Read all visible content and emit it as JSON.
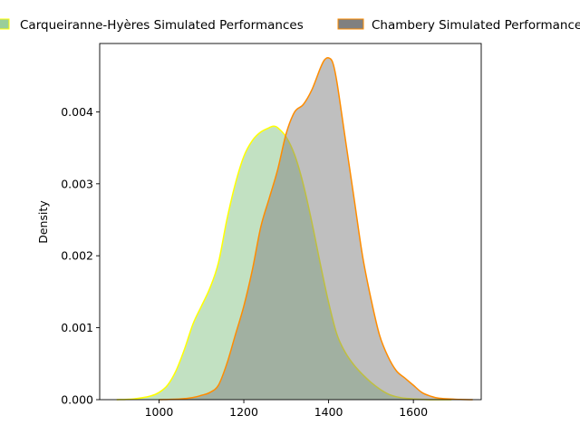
{
  "chart_data": {
    "type": "area",
    "xlabel": "",
    "ylabel": "Density",
    "xlim": [
      860,
      1760
    ],
    "ylim": [
      0,
      0.00495
    ],
    "xticks": [
      1000,
      1200,
      1400,
      1600
    ],
    "yticks": [
      0.0,
      0.001,
      0.002,
      0.003,
      0.004
    ],
    "ytick_labels": [
      "0.000",
      "0.001",
      "0.002",
      "0.003",
      "0.004"
    ],
    "grid": false,
    "legend_position": "top",
    "series": [
      {
        "name": "Carqueiranne-Hyères Simulated Performances",
        "fill_color": "#8fc98f",
        "fill_opacity": 0.55,
        "line_color": "#ffff00",
        "legend_swatch": "#8fc98f",
        "legend_edge": "#ffff00",
        "x": [
          900,
          940,
          980,
          1000,
          1020,
          1040,
          1060,
          1080,
          1100,
          1120,
          1140,
          1160,
          1180,
          1200,
          1220,
          1240,
          1260,
          1270,
          1280,
          1300,
          1320,
          1340,
          1360,
          1380,
          1400,
          1420,
          1440,
          1460,
          1480,
          1500,
          1520,
          1540,
          1560,
          1580,
          1600,
          1640,
          1690
        ],
        "y": [
          0,
          1e-05,
          5e-05,
          0.0001,
          0.0002,
          0.0004,
          0.0007,
          0.00105,
          0.0013,
          0.00155,
          0.0019,
          0.0025,
          0.003,
          0.00338,
          0.0036,
          0.00372,
          0.00378,
          0.0038,
          0.00378,
          0.00365,
          0.0034,
          0.003,
          0.00248,
          0.0019,
          0.00135,
          0.0009,
          0.00065,
          0.00048,
          0.00035,
          0.00024,
          0.00015,
          8e-05,
          4e-05,
          2e-05,
          1e-05,
          0,
          0
        ]
      },
      {
        "name": "Chambery Simulated Performances",
        "fill_color": "#808080",
        "fill_opacity": 0.5,
        "line_color": "#ff8c00",
        "legend_swatch": "#808080",
        "legend_edge": "#ff8c00",
        "x": [
          1000,
          1050,
          1080,
          1100,
          1120,
          1140,
          1160,
          1180,
          1200,
          1220,
          1240,
          1260,
          1280,
          1300,
          1320,
          1340,
          1360,
          1380,
          1390,
          1400,
          1410,
          1420,
          1440,
          1460,
          1480,
          1500,
          1520,
          1540,
          1560,
          1580,
          1600,
          1620,
          1640,
          1660,
          1700,
          1740
        ],
        "y": [
          0,
          1e-05,
          3e-05,
          6e-05,
          0.0001,
          0.0002,
          0.0005,
          0.0009,
          0.0013,
          0.0018,
          0.0024,
          0.0028,
          0.0032,
          0.0037,
          0.004,
          0.0041,
          0.0043,
          0.0046,
          0.00472,
          0.00475,
          0.00468,
          0.0044,
          0.0036,
          0.0028,
          0.002,
          0.0014,
          0.0009,
          0.0006,
          0.0004,
          0.0003,
          0.0002,
          0.0001,
          5e-05,
          2e-05,
          5e-06,
          0
        ]
      }
    ]
  }
}
